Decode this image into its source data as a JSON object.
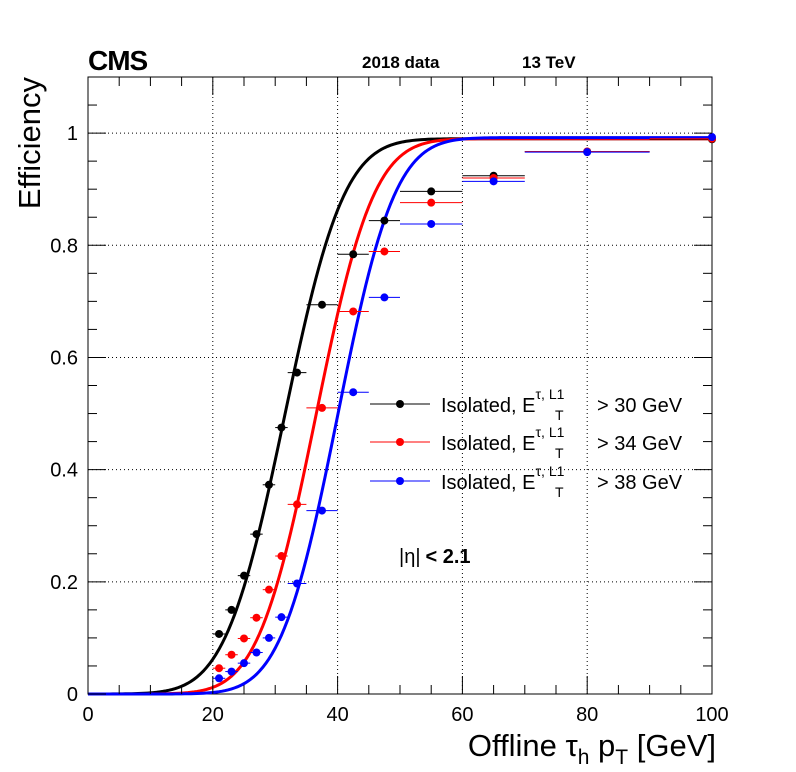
{
  "header": {
    "experiment": "CMS",
    "dataset": "2018 data",
    "energy": "13 TeV"
  },
  "annotation": {
    "eta_cut_symbol": "|η|",
    "eta_cut_value": "< 2.1"
  },
  "chart_data": {
    "type": "scatter",
    "xlabel": {
      "main": "Offline τ",
      "sub_h": "h",
      "mid": " p",
      "sub_T": "T",
      "unit": " [GeV]"
    },
    "ylabel": "Efficiency",
    "xlim": [
      0,
      100
    ],
    "ylim": [
      0,
      1.1
    ],
    "xticks": [
      0,
      20,
      40,
      60,
      80,
      100
    ],
    "yticks": [
      0,
      0.2,
      0.4,
      0.6,
      0.8,
      1
    ],
    "ytick_labels": [
      "0",
      "0.2",
      "0.4",
      "0.6",
      "0.8",
      "1"
    ],
    "grid": true,
    "legend_position": "center-right",
    "series": [
      {
        "name": "Isolated, E_T^{τ, L1} > 30 GeV",
        "legend": {
          "prefix": "Isolated, E",
          "sup": "τ, L1",
          "sub": "T",
          "suffix": " > 30 GeV"
        },
        "color": "#000000",
        "fit": {
          "mu": 31.5,
          "sigma": 7.5,
          "plateau": 0.99
        },
        "points": [
          {
            "x": 21,
            "y": 0.107,
            "xerr": 1.0,
            "yerr": 0.006
          },
          {
            "x": 23,
            "y": 0.15,
            "xerr": 1.0,
            "yerr": 0.006
          },
          {
            "x": 25,
            "y": 0.211,
            "xerr": 1.0,
            "yerr": 0.006
          },
          {
            "x": 27,
            "y": 0.285,
            "xerr": 1.0,
            "yerr": 0.006
          },
          {
            "x": 29,
            "y": 0.373,
            "xerr": 1.0,
            "yerr": 0.006
          },
          {
            "x": 31,
            "y": 0.475,
            "xerr": 1.0,
            "yerr": 0.006
          },
          {
            "x": 33.5,
            "y": 0.573,
            "xerr": 1.5,
            "yerr": 0.006
          },
          {
            "x": 37.5,
            "y": 0.694,
            "xerr": 2.5,
            "yerr": 0.006
          },
          {
            "x": 42.5,
            "y": 0.784,
            "xerr": 2.5,
            "yerr": 0.006
          },
          {
            "x": 47.5,
            "y": 0.844,
            "xerr": 2.5,
            "yerr": 0.006
          },
          {
            "x": 55,
            "y": 0.896,
            "xerr": 5.0,
            "yerr": 0.006
          },
          {
            "x": 65,
            "y": 0.924,
            "xerr": 5.0,
            "yerr": 0.006
          },
          {
            "x": 80,
            "y": 0.967,
            "xerr": 10.0,
            "yerr": 0.006
          },
          {
            "x": 100,
            "y": 0.989,
            "xerr": 10.0,
            "yerr": 0.006
          }
        ]
      },
      {
        "name": "Isolated, E_T^{τ, L1} > 34 GeV",
        "legend": {
          "prefix": "Isolated, E",
          "sup": "τ, L1",
          "sub": "T",
          "suffix": " > 34 GeV"
        },
        "color": "#ff0000",
        "fit": {
          "mu": 36.5,
          "sigma": 7.3,
          "plateau": 0.99
        },
        "points": [
          {
            "x": 21,
            "y": 0.046,
            "xerr": 1.0,
            "yerr": 0.005
          },
          {
            "x": 23,
            "y": 0.07,
            "xerr": 1.0,
            "yerr": 0.005
          },
          {
            "x": 25,
            "y": 0.099,
            "xerr": 1.0,
            "yerr": 0.005
          },
          {
            "x": 27,
            "y": 0.136,
            "xerr": 1.0,
            "yerr": 0.005
          },
          {
            "x": 29,
            "y": 0.186,
            "xerr": 1.0,
            "yerr": 0.005
          },
          {
            "x": 31,
            "y": 0.246,
            "xerr": 1.0,
            "yerr": 0.005
          },
          {
            "x": 33.5,
            "y": 0.338,
            "xerr": 1.5,
            "yerr": 0.006
          },
          {
            "x": 37.5,
            "y": 0.51,
            "xerr": 2.5,
            "yerr": 0.006
          },
          {
            "x": 42.5,
            "y": 0.682,
            "xerr": 2.5,
            "yerr": 0.006
          },
          {
            "x": 47.5,
            "y": 0.789,
            "xerr": 2.5,
            "yerr": 0.006
          },
          {
            "x": 55,
            "y": 0.876,
            "xerr": 5.0,
            "yerr": 0.006
          },
          {
            "x": 65,
            "y": 0.92,
            "xerr": 5.0,
            "yerr": 0.006
          },
          {
            "x": 80,
            "y": 0.967,
            "xerr": 10.0,
            "yerr": 0.006
          },
          {
            "x": 100,
            "y": 0.99,
            "xerr": 10.0,
            "yerr": 0.006
          }
        ]
      },
      {
        "name": "Isolated, E_T^{τ, L1} > 38 GeV",
        "legend": {
          "prefix": "Isolated, E",
          "sup": "τ, L1",
          "sub": "T",
          "suffix": " > 38 GeV"
        },
        "color": "#0000ff",
        "fit": {
          "mu": 40.0,
          "sigma": 7.2,
          "plateau": 0.992
        },
        "points": [
          {
            "x": 21,
            "y": 0.028,
            "xerr": 1.0,
            "yerr": 0.004
          },
          {
            "x": 23,
            "y": 0.04,
            "xerr": 1.0,
            "yerr": 0.004
          },
          {
            "x": 25,
            "y": 0.055,
            "xerr": 1.0,
            "yerr": 0.004
          },
          {
            "x": 27,
            "y": 0.074,
            "xerr": 1.0,
            "yerr": 0.004
          },
          {
            "x": 29,
            "y": 0.1,
            "xerr": 1.0,
            "yerr": 0.005
          },
          {
            "x": 31,
            "y": 0.137,
            "xerr": 1.0,
            "yerr": 0.005
          },
          {
            "x": 33.5,
            "y": 0.197,
            "xerr": 1.5,
            "yerr": 0.006
          },
          {
            "x": 37.5,
            "y": 0.327,
            "xerr": 2.5,
            "yerr": 0.006
          },
          {
            "x": 42.5,
            "y": 0.538,
            "xerr": 2.5,
            "yerr": 0.006
          },
          {
            "x": 47.5,
            "y": 0.707,
            "xerr": 2.5,
            "yerr": 0.006
          },
          {
            "x": 55,
            "y": 0.838,
            "xerr": 5.0,
            "yerr": 0.006
          },
          {
            "x": 65,
            "y": 0.914,
            "xerr": 5.0,
            "yerr": 0.006
          },
          {
            "x": 80,
            "y": 0.966,
            "xerr": 10.0,
            "yerr": 0.006
          },
          {
            "x": 100,
            "y": 0.993,
            "xerr": 10.0,
            "yerr": 0.006
          }
        ]
      }
    ]
  }
}
